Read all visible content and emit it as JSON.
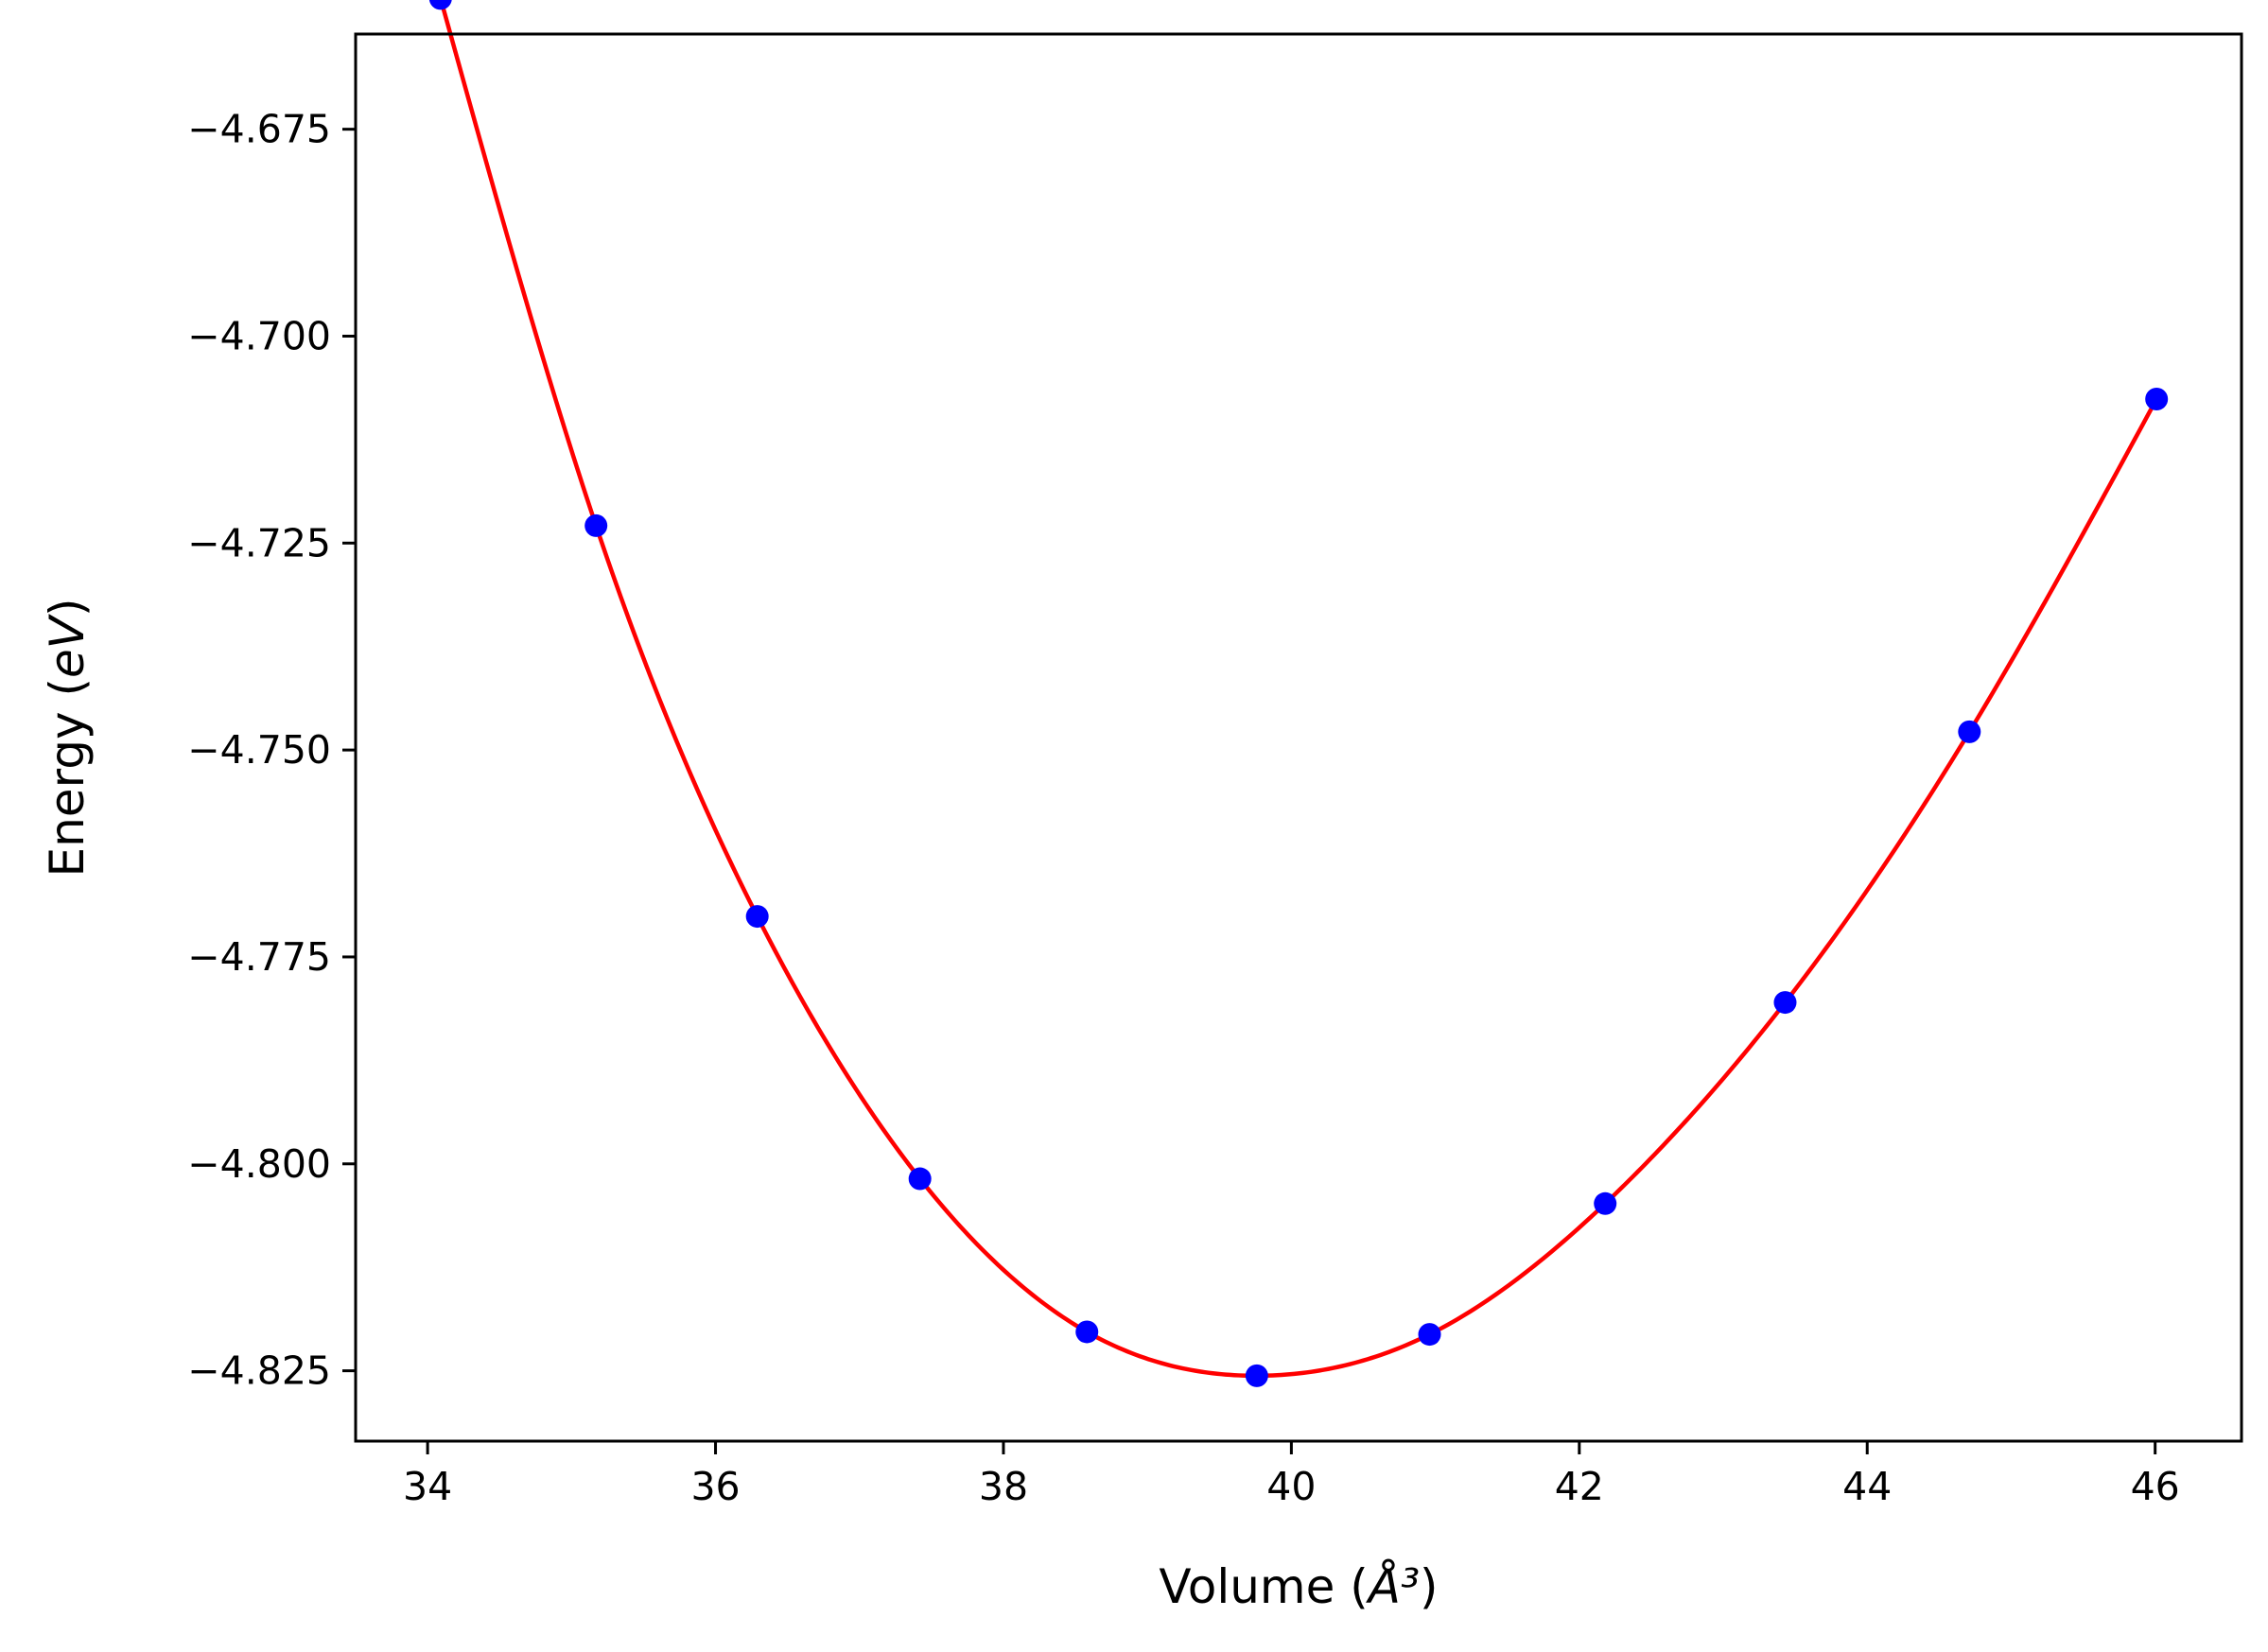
{
  "chart_data": {
    "type": "line",
    "xlabel": "Volume (Å³)",
    "ylabel": "Energy (eV)",
    "xlim": [
      33.5,
      46.6
    ],
    "ylim": [
      -4.8335,
      -4.6635
    ],
    "x_ticks": [
      34,
      36,
      38,
      40,
      42,
      44,
      46
    ],
    "x_tick_labels": [
      "34",
      "36",
      "38",
      "40",
      "42",
      "44",
      "46"
    ],
    "y_ticks": [
      -4.675,
      -4.7,
      -4.725,
      -4.75,
      -4.775,
      -4.8,
      -4.825
    ],
    "y_tick_labels": [
      "−4.675",
      "−4.700",
      "−4.725",
      "−4.750",
      "−4.775",
      "−4.800",
      "−4.825"
    ],
    "grid": false,
    "series": [
      {
        "kind": "points",
        "color": "#0000ff",
        "x": [
          34.09,
          35.17,
          36.29,
          37.42,
          38.58,
          39.76,
          40.96,
          42.18,
          43.43,
          44.71,
          46.01
        ],
        "y": [
          -4.6592,
          -4.7229,
          -4.7701,
          -4.8018,
          -4.8203,
          -4.8256,
          -4.8206,
          -4.8048,
          -4.7805,
          -4.7478,
          -4.7076
        ]
      },
      {
        "kind": "fit-curve",
        "color": "#ff0000",
        "x": [
          34.09,
          35.17,
          36.29,
          37.42,
          38.58,
          39.76,
          40.96,
          42.18,
          43.43,
          44.71,
          46.01
        ],
        "y": [
          -4.6592,
          -4.7229,
          -4.7701,
          -4.8018,
          -4.8203,
          -4.8256,
          -4.8206,
          -4.8048,
          -4.7805,
          -4.7478,
          -4.7076
        ]
      }
    ]
  }
}
